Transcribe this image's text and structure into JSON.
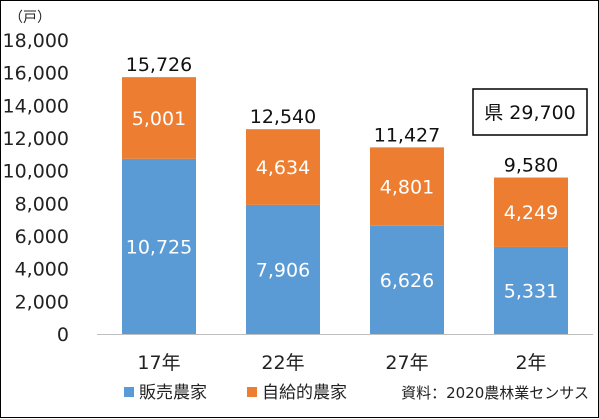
{
  "chart_data": {
    "type": "bar",
    "stacked": true,
    "unit_label": "（戸）",
    "categories": [
      "17年",
      "22年",
      "27年",
      "2年"
    ],
    "series": [
      {
        "name": "販売農家",
        "values": [
          10725,
          7906,
          6626,
          5331
        ],
        "color": "#5b9bd5"
      },
      {
        "name": "自給的農家",
        "values": [
          5001,
          4634,
          4801,
          4249
        ],
        "color": "#ed7d31"
      }
    ],
    "totals": [
      15726,
      12540,
      11427,
      9580
    ],
    "ylim": [
      0,
      18000
    ],
    "yticks": [
      0,
      2000,
      4000,
      6000,
      8000,
      10000,
      12000,
      14000,
      16000,
      18000
    ],
    "grid": false,
    "legend_position": "bottom-left",
    "annotation": "県 29,700",
    "source": "資料：2020農林業センサス"
  }
}
